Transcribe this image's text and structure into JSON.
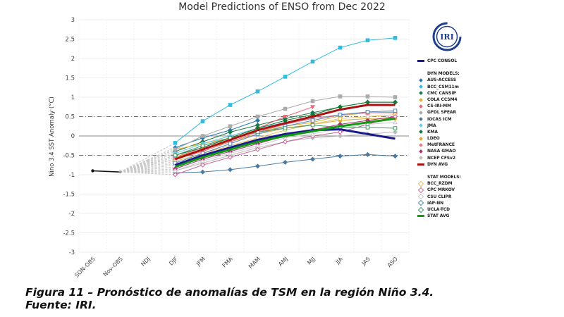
{
  "chart_data": {
    "type": "line",
    "title": "Model Predictions of ENSO from Dec 2022",
    "xlabel": "",
    "ylabel": "Nino 3.4 SST Anomaly (°C)",
    "ylim": [
      -3,
      3
    ],
    "yticks": [
      "3",
      "2.5",
      "2",
      "1.5",
      "1",
      "0.5",
      "0",
      "-0.5",
      "-1",
      "-1.5",
      "-2",
      "-2.5",
      "-3"
    ],
    "ytick_values": [
      3,
      2.5,
      2,
      1.5,
      1,
      0.5,
      0,
      -0.5,
      -1,
      -1.5,
      -2,
      -2.5,
      -3
    ],
    "categories": [
      "SON-OBS",
      "Nov-OBS",
      "NDJ",
      "DJF",
      "JFM",
      "FMA",
      "MAM",
      "AMJ",
      "MJJ",
      "JJA",
      "JAS",
      "ASO"
    ],
    "reference_lines": [
      {
        "y": 0.5,
        "style": "dash-dot"
      },
      {
        "y": 0,
        "style": "solid"
      },
      {
        "y": -0.5,
        "style": "dash-dot"
      }
    ],
    "observed": {
      "name": "OBS",
      "color": "#111111",
      "values": [
        -0.9,
        -0.93
      ]
    },
    "series": [
      {
        "name": "CPC CONSOL",
        "group": "avg",
        "color": "#1a1a8c",
        "values": [
          null,
          null,
          null,
          -0.75,
          -0.5,
          -0.3,
          -0.1,
          0.05,
          0.15,
          0.17,
          0.05,
          -0.07
        ]
      },
      {
        "name": "AUS-ACCESS",
        "group": "dyn",
        "color": "#2a7ab0",
        "marker": "diamond",
        "values": [
          null,
          null,
          null,
          -0.3,
          -0.05,
          0.15,
          0.4,
          null,
          null,
          null,
          null,
          null
        ]
      },
      {
        "name": "BCC_CSM11m",
        "group": "dyn",
        "color": "#33bbdd",
        "marker": "square",
        "values": [
          null,
          null,
          null,
          -0.18,
          0.38,
          0.8,
          1.15,
          1.53,
          1.92,
          2.28,
          2.47,
          2.53
        ]
      },
      {
        "name": "CMC CANSIP",
        "group": "dyn",
        "color": "#1d7a4a",
        "marker": "diamond",
        "values": [
          null,
          null,
          null,
          -0.4,
          -0.15,
          0.1,
          0.28,
          0.45,
          0.6,
          0.75,
          0.87,
          0.87
        ]
      },
      {
        "name": "COLA CCSM4",
        "group": "dyn",
        "color": "#e0b030",
        "marker": "triangle",
        "values": [
          null,
          null,
          null,
          -0.35,
          -0.2,
          -0.05,
          0.1,
          0.25,
          0.35,
          0.52,
          0.6,
          0.6
        ]
      },
      {
        "name": "CS-IRI-MM",
        "group": "dyn",
        "color": "#ee6677",
        "marker": "triangle-down",
        "values": [
          null,
          null,
          null,
          -0.55,
          -0.3,
          -0.05,
          0.2,
          0.5,
          0.75,
          null,
          null,
          null
        ]
      },
      {
        "name": "GFDL SPEAR",
        "group": "dyn",
        "color": "#aaaaaa",
        "marker": "square",
        "values": [
          null,
          null,
          null,
          -0.35,
          0.0,
          0.25,
          0.5,
          0.7,
          0.9,
          1.02,
          1.02,
          1.0
        ]
      },
      {
        "name": "IOCAS ICM",
        "group": "dyn",
        "color": "#4a7aa0",
        "marker": "diamond",
        "values": [
          null,
          null,
          null,
          -0.95,
          -0.93,
          -0.87,
          -0.78,
          -0.68,
          -0.6,
          -0.52,
          -0.48,
          -0.52
        ]
      },
      {
        "name": "JMA",
        "group": "dyn",
        "color": "#66ccee",
        "marker": "circle",
        "values": [
          null,
          null,
          null,
          -0.45,
          -0.2,
          0.0,
          0.2,
          0.35,
          0.45,
          0.55,
          0.6,
          0.62
        ]
      },
      {
        "name": "KMA",
        "group": "dyn",
        "color": "#117733",
        "marker": "diamond",
        "values": [
          null,
          null,
          null,
          -0.5,
          -0.3,
          -0.05,
          0.2,
          0.4,
          0.55,
          0.75,
          0.87,
          0.87
        ]
      },
      {
        "name": "LDEO",
        "group": "dyn",
        "color": "#ddaa33",
        "marker": "circle",
        "values": [
          null,
          null,
          null,
          -0.55,
          -0.35,
          -0.15,
          0.05,
          0.2,
          0.3,
          0.4,
          0.45,
          0.45
        ]
      },
      {
        "name": "MetFRANCE",
        "group": "dyn",
        "color": "#ee7788",
        "marker": "square",
        "values": [
          null,
          null,
          null,
          -0.6,
          -0.4,
          -0.15,
          0.1,
          0.3,
          0.45,
          0.55,
          0.6,
          0.6
        ]
      },
      {
        "name": "NASA GMAO",
        "group": "dyn",
        "color": "#aa3377",
        "marker": "diamond",
        "values": [
          null,
          null,
          null,
          -0.85,
          -0.6,
          -0.4,
          -0.2,
          0.0,
          0.15,
          0.3,
          0.4,
          0.5
        ]
      },
      {
        "name": "NCEP CFSv2",
        "group": "dyn",
        "color": "#bbbbbb",
        "marker": "diamond",
        "values": [
          null,
          null,
          null,
          -0.9,
          -0.7,
          -0.5,
          -0.3,
          -0.15,
          -0.05,
          0.0,
          0.05,
          0.1
        ]
      },
      {
        "name": "DYN AVG",
        "group": "avg",
        "color": "#aa1111",
        "values": [
          null,
          null,
          null,
          -0.6,
          -0.35,
          -0.1,
          0.15,
          0.33,
          0.5,
          0.68,
          0.8,
          0.8
        ]
      },
      {
        "name": "BCC_RZDM",
        "group": "stat",
        "color": "#e8c060",
        "marker": "circle-open",
        "values": [
          null,
          null,
          null,
          -0.65,
          -0.45,
          -0.25,
          -0.05,
          0.15,
          0.3,
          0.45,
          0.5,
          0.55
        ]
      },
      {
        "name": "CPC MRKOV",
        "group": "stat",
        "color": "#cc6699",
        "marker": "diamond-open",
        "values": [
          null,
          null,
          null,
          -1.0,
          -0.75,
          -0.55,
          -0.35,
          -0.15,
          0.0,
          0.1,
          0.3,
          0.5
        ]
      },
      {
        "name": "CSU CLIPR",
        "group": "stat",
        "color": "#cccccc",
        "marker": "triangle-open",
        "values": [
          null,
          null,
          null,
          -0.9,
          -0.65,
          -0.45,
          -0.25,
          -0.05,
          0.05,
          0.2,
          0.3,
          0.35
        ]
      },
      {
        "name": "IAP-NN",
        "group": "stat",
        "color": "#5588bb",
        "marker": "square-open",
        "values": [
          null,
          null,
          null,
          -0.7,
          -0.45,
          -0.2,
          0.05,
          0.25,
          0.4,
          0.55,
          0.62,
          0.65
        ]
      },
      {
        "name": "UCLA-TCD",
        "group": "stat",
        "color": "#449966",
        "marker": "square-open",
        "values": [
          null,
          null,
          null,
          -0.5,
          -0.25,
          -0.05,
          0.1,
          0.2,
          0.28,
          0.22,
          0.22,
          0.2
        ]
      },
      {
        "name": "STAT AVG",
        "group": "avg",
        "color": "#119911",
        "values": [
          null,
          null,
          null,
          -0.8,
          -0.55,
          -0.35,
          -0.15,
          0.0,
          0.12,
          0.25,
          0.35,
          0.45
        ]
      }
    ],
    "legend_placement": "right",
    "grid": true
  },
  "legend": {
    "groups": [
      {
        "header": null,
        "items": [
          {
            "name": "CPC CONSOL",
            "color": "#1a1a8c",
            "kind": "line"
          }
        ]
      },
      {
        "header": "DYN MODELS:",
        "items": [
          {
            "name": "AUS-ACCESS",
            "color": "#2a7ab0",
            "kind": "marker"
          },
          {
            "name": "BCC_CSM11m",
            "color": "#33bbdd",
            "kind": "marker"
          },
          {
            "name": "CMC CANSIP",
            "color": "#1d7a4a",
            "kind": "marker"
          },
          {
            "name": "COLA CCSM4",
            "color": "#e0b030",
            "kind": "marker"
          },
          {
            "name": "CS-IRI-MM",
            "color": "#ee6677",
            "kind": "marker"
          },
          {
            "name": "GFDL SPEAR",
            "color": "#aaaaaa",
            "kind": "marker"
          },
          {
            "name": "IOCAS ICM",
            "color": "#4a7aa0",
            "kind": "marker"
          },
          {
            "name": "JMA",
            "color": "#66ccee",
            "kind": "marker"
          },
          {
            "name": "KMA",
            "color": "#117733",
            "kind": "marker"
          },
          {
            "name": "LDEO",
            "color": "#ddaa33",
            "kind": "marker"
          },
          {
            "name": "MetFRANCE",
            "color": "#ee7788",
            "kind": "marker"
          },
          {
            "name": "NASA GMAO",
            "color": "#aa3377",
            "kind": "marker"
          },
          {
            "name": "NCEP CFSv2",
            "color": "#bbbbbb",
            "kind": "marker"
          },
          {
            "name": "DYN AVG",
            "color": "#aa1111",
            "kind": "line"
          }
        ]
      },
      {
        "header": "STAT MODELS:",
        "items": [
          {
            "name": "BCC_RZDM",
            "color": "#e8c060",
            "kind": "open"
          },
          {
            "name": "CPC MRKOV",
            "color": "#cc6699",
            "kind": "open"
          },
          {
            "name": "CSU CLIPR",
            "color": "#cccccc",
            "kind": "open"
          },
          {
            "name": "IAP-NN",
            "color": "#5588bb",
            "kind": "open"
          },
          {
            "name": "UCLA-TCD",
            "color": "#449966",
            "kind": "open"
          },
          {
            "name": "STAT AVG",
            "color": "#119911",
            "kind": "line"
          }
        ]
      }
    ]
  },
  "logo": {
    "text": "IRI",
    "color": "#1f3f8f"
  },
  "caption": {
    "line1": "Figura 11 – Pronóstico de anomalías de TSM en la región Niño 3.4.",
    "line2": "Fuente: IRI."
  }
}
